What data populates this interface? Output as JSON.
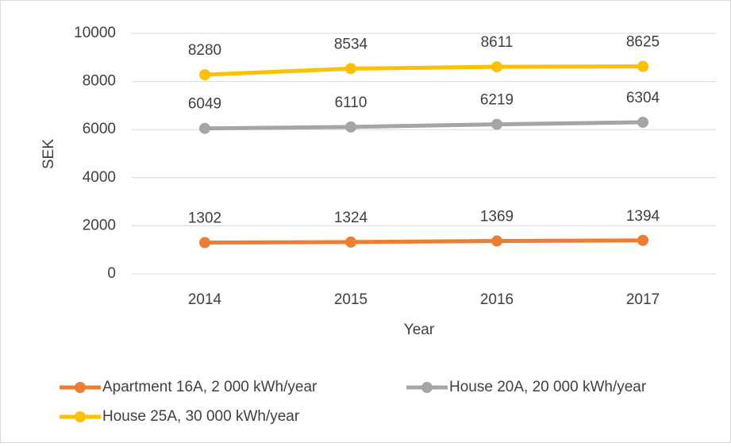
{
  "chart_data": {
    "type": "line",
    "x_label": "Year",
    "y_label": "SEK",
    "categories": [
      "2014",
      "2015",
      "2016",
      "2017"
    ],
    "series": [
      {
        "name": "Apartment 16A, 2 000 kWh/year",
        "color": "#ED7D31",
        "values": [
          1302,
          1324,
          1369,
          1394
        ]
      },
      {
        "name": "House 20A, 20 000 kWh/year",
        "color": "#A5A5A5",
        "values": [
          6049,
          6110,
          6219,
          6304
        ]
      },
      {
        "name": "House 25A, 30 000 kWh/year",
        "color": "#FFC000",
        "values": [
          8280,
          8534,
          8611,
          8625
        ]
      }
    ],
    "ylim": [
      0,
      10000
    ],
    "yticks": [
      0,
      2000,
      4000,
      6000,
      8000,
      10000
    ],
    "grid": true
  }
}
